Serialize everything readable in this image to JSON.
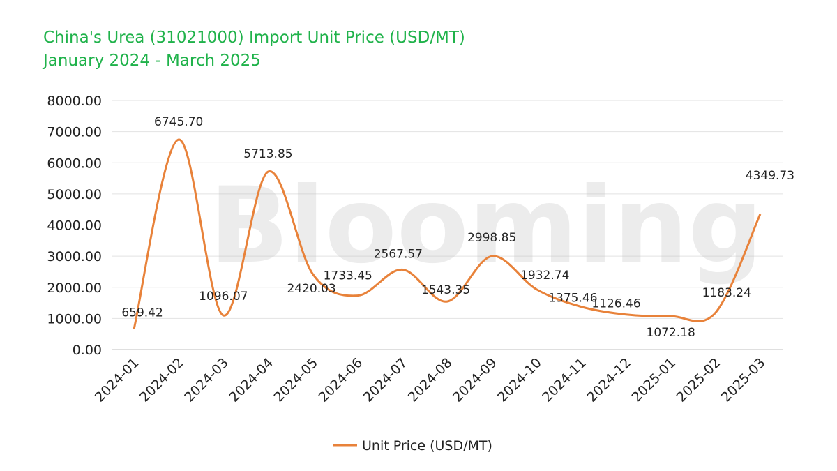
{
  "chart_data": {
    "type": "line",
    "title": "China's Urea (31021000) Import Unit Price (USD/MT)",
    "subtitle": "January 2024 - March 2025",
    "categories": [
      "2024-01",
      "2024-02",
      "2024-03",
      "2024-04",
      "2024-05",
      "2024-06",
      "2024-07",
      "2024-08",
      "2024-09",
      "2024-10",
      "2024-11",
      "2024-12",
      "2025-01",
      "2025-02",
      "2025-03"
    ],
    "series": [
      {
        "name": "Unit Price (USD/MT)",
        "values": [
          659.42,
          6745.7,
          1096.07,
          5713.85,
          2420.03,
          1733.45,
          2567.57,
          1543.35,
          2998.85,
          1932.74,
          1375.46,
          1126.46,
          1072.18,
          1183.24,
          4349.73
        ],
        "labels": [
          "659.42",
          "6745.70",
          "1096.07",
          "5713.85",
          "2420.03",
          "1733.45",
          "2567.57",
          "1543.35",
          "2998.85",
          "1932.74",
          "1375.46",
          "1126.46",
          "1072.18",
          "1183.24",
          "4349.73"
        ]
      }
    ],
    "ylim": [
      0,
      8000
    ],
    "yticks": [
      "0.00",
      "1000.00",
      "2000.00",
      "3000.00",
      "4000.00",
      "5000.00",
      "6000.00",
      "7000.00",
      "8000.00"
    ],
    "grid": true,
    "legend": "bottom",
    "smooth": true,
    "line_color": "#e8823a"
  },
  "watermark": "Blooming"
}
